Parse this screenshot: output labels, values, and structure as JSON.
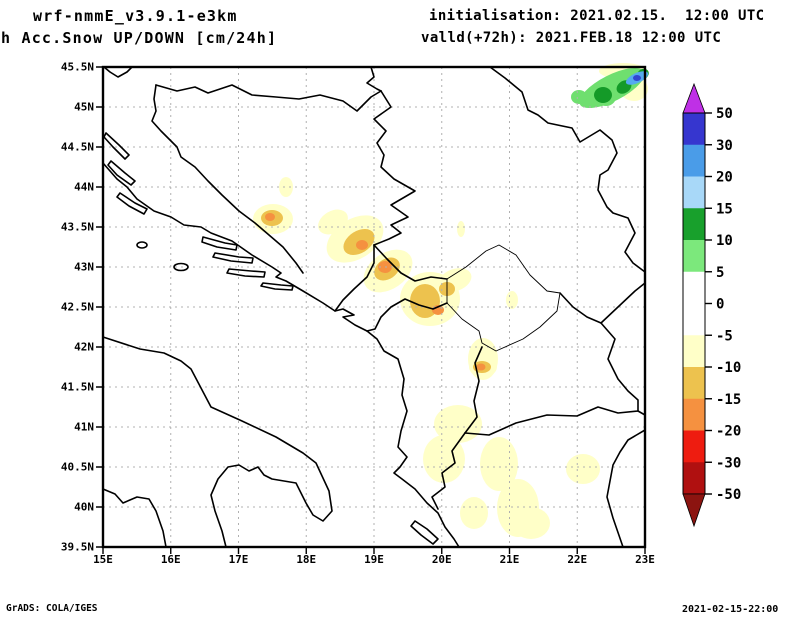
{
  "header": {
    "model_title": "wrf-nmmE_v3.9.1-e3km",
    "product_title": "h Acc.Snow UP/DOWN [cm/24h]",
    "init_line": "initialisation: 2021.02.15.  12:00 UTC",
    "valid_line": "valld(+72h): 2021.FEB.18 12:00 UTC"
  },
  "footer": {
    "credit": "GrADS: COLA/IGES",
    "timestamp": "2021-02-15-22:00"
  },
  "map": {
    "lat_tick_labels": [
      "45.5N",
      "45N",
      "44.5N",
      "44N",
      "43.5N",
      "43N",
      "42.5N",
      "42N",
      "41.5N",
      "41N",
      "40.5N",
      "40N",
      "39.5N"
    ],
    "lon_tick_labels": [
      "15E",
      "16E",
      "17E",
      "18E",
      "19E",
      "20E",
      "21E",
      "22E",
      "23E"
    ],
    "background": "#ffffff",
    "palette": {
      "pale_yellow": "#ffffc8",
      "golden": "#edc24e",
      "orange": "#f59140",
      "light_green": "#6fdf6f",
      "dark_green": "#149a28",
      "light_blue": "#55aaee",
      "blue": "#3347d0"
    },
    "line_colors": {
      "coastline": "#000000",
      "border": "#000000",
      "gridline": "#b0b0b0",
      "frame": "#000000"
    }
  },
  "colorbar": {
    "boundary_labels": [
      "50",
      "30",
      "20",
      "15",
      "10",
      "5",
      "0",
      "-5",
      "-10",
      "-15",
      "-20",
      "-30",
      "-50"
    ],
    "segment_colors": [
      "#3636cf",
      "#4a9ce8",
      "#a8d8f8",
      "#18a02c",
      "#7ce87c",
      "#ffffff",
      "#ffffff",
      "#ffffc8",
      "#edc24e",
      "#f59140",
      "#ee1c10",
      "#b01010"
    ],
    "arrow_up_color": "#bf30e6",
    "arrow_down_color": "#8c1410"
  }
}
